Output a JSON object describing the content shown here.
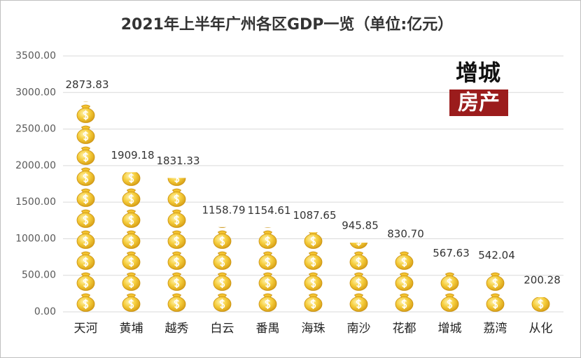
{
  "chart_data": {
    "type": "bar",
    "title": "2021年上半年广州各区GDP一览（单位:亿元）",
    "categories": [
      "天河",
      "黄埔",
      "越秀",
      "白云",
      "番禺",
      "海珠",
      "南沙",
      "花都",
      "增城",
      "荔湾",
      "从化"
    ],
    "values": [
      2873.83,
      1909.18,
      1831.33,
      1158.79,
      1154.61,
      1087.65,
      945.85,
      830.7,
      567.63,
      542.04,
      200.28
    ],
    "value_labels": [
      "2873.83",
      "1909.18",
      "1831.33",
      "1158.79",
      "1154.61",
      "1087.65",
      "945.85",
      "830.70",
      "567.63",
      "542.04",
      "200.28"
    ],
    "color": "#f2c12e",
    "ylim": [
      0,
      3500
    ],
    "yticks": [
      {
        "value": 0,
        "label": "0.00"
      },
      {
        "value": 500,
        "label": "500.00"
      },
      {
        "value": 1000,
        "label": "1000.00"
      },
      {
        "value": 1500,
        "label": "1500.00"
      },
      {
        "value": 2000,
        "label": "2000.00"
      },
      {
        "value": 2500,
        "label": "2500.00"
      },
      {
        "value": 3000,
        "label": "3000.00"
      },
      {
        "value": 3500,
        "label": "3500.00"
      }
    ],
    "grid": true,
    "watermark": [
      "增城",
      "房产"
    ]
  }
}
